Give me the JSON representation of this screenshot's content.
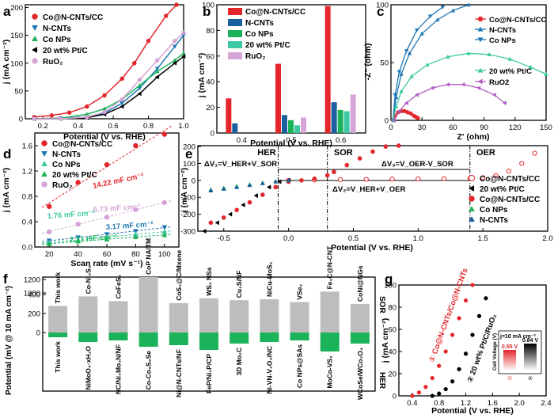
{
  "colors": {
    "red": "#e3262b",
    "blue": "#1f77b4",
    "navy": "#1a5f9e",
    "green": "#1bb35a",
    "teal": "#3cc8a2",
    "purple": "#b15dc4",
    "pink": "#d6a5d6",
    "gray": "#bdbdbd",
    "black": "#000000"
  },
  "panels": {
    "a": "a",
    "b": "b",
    "c": "c",
    "d": "d",
    "e": "e",
    "f": "f",
    "g": "g"
  },
  "chart_data": [
    {
      "panel": "a",
      "type": "line",
      "xlabel": "Potential (V vs. RHE)",
      "ylabel": "j (mA cm⁻²)",
      "xlim": [
        0.1,
        1.0
      ],
      "ylim": [
        0,
        205
      ],
      "xticks": [
        0.2,
        0.4,
        0.6,
        0.8,
        1.0
      ],
      "yticks": [
        0,
        50,
        100,
        150,
        200
      ],
      "legend": [
        "Co@N-CNTs/CC",
        "N-CNTs",
        "Co NPs",
        "20 wt% Pt/C",
        "RuO₂"
      ],
      "series": [
        {
          "name": "Co@N-CNTs/CC",
          "x": [
            0.15,
            0.25,
            0.35,
            0.45,
            0.55,
            0.65,
            0.72,
            0.8,
            0.9,
            0.96
          ],
          "y": [
            3,
            6,
            11,
            22,
            42,
            72,
            100,
            140,
            185,
            205
          ]
        },
        {
          "name": "N-CNTs",
          "x": [
            0.15,
            0.3,
            0.45,
            0.55,
            0.65,
            0.75,
            0.85,
            0.95,
            1.0
          ],
          "y": [
            0,
            1,
            3,
            10,
            28,
            55,
            90,
            130,
            150
          ]
        },
        {
          "name": "Co NPs",
          "x": [
            0.15,
            0.3,
            0.45,
            0.55,
            0.65,
            0.75,
            0.85,
            0.95,
            1.0
          ],
          "y": [
            0,
            1,
            8,
            18,
            35,
            60,
            85,
            105,
            118
          ]
        },
        {
          "name": "20 wt% Pt/C",
          "x": [
            0.15,
            0.3,
            0.45,
            0.55,
            0.65,
            0.75,
            0.85,
            0.95,
            1.0
          ],
          "y": [
            0,
            0,
            2,
            8,
            22,
            45,
            75,
            100,
            112
          ]
        },
        {
          "name": "RuO₂",
          "x": [
            0.15,
            0.3,
            0.45,
            0.55,
            0.65,
            0.75,
            0.85,
            0.95,
            1.0
          ],
          "y": [
            0,
            0,
            3,
            12,
            35,
            70,
            105,
            140,
            155
          ]
        }
      ]
    },
    {
      "panel": "b",
      "type": "bar",
      "xlabel": "Potential (V vs. RHE)",
      "ylabel": "j (mA cm⁻²)",
      "ylim": [
        0,
        100
      ],
      "yticks": [
        0,
        20,
        40,
        60,
        80,
        100
      ],
      "categories": [
        "0.4",
        "0.5",
        "0.6"
      ],
      "series": [
        {
          "name": "Co@N-CNTs/CC",
          "values": [
            27,
            54,
            99
          ]
        },
        {
          "name": "N-CNTs",
          "values": [
            7.5,
            14,
            24
          ]
        },
        {
          "name": "Co NPs",
          "values": [
            0,
            10,
            18
          ]
        },
        {
          "name": "20 wt% Pt/C",
          "values": [
            0,
            6,
            17
          ]
        },
        {
          "name": "RuO₂",
          "values": [
            0,
            12,
            30
          ]
        }
      ]
    },
    {
      "panel": "c",
      "type": "scatter",
      "xlabel": "Z' (ohm)",
      "ylabel": "-Z'' (ohm)",
      "xlim": [
        0,
        150
      ],
      "ylim": [
        0,
        100
      ],
      "xticks": [
        0,
        30,
        60,
        90,
        120,
        150
      ],
      "yticks": [
        0,
        50,
        100
      ],
      "series": [
        {
          "name": "Co@N-CNTs/CC",
          "x": [
            2,
            4,
            7,
            10,
            13,
            16,
            19,
            22,
            24,
            26
          ],
          "y": [
            0,
            4,
            7,
            8,
            8,
            7,
            6,
            4,
            3,
            2
          ]
        },
        {
          "name": "N-CNTs",
          "x": [
            2,
            5,
            10,
            18,
            30,
            45,
            60,
            75,
            88
          ],
          "y": [
            0,
            20,
            40,
            58,
            75,
            87,
            95,
            100,
            104
          ]
        },
        {
          "name": "Co NPs",
          "x": [
            2,
            4,
            8,
            15,
            25,
            38,
            50,
            62,
            70
          ],
          "y": [
            0,
            22,
            42,
            60,
            78,
            90,
            98,
            104,
            108
          ]
        },
        {
          "name": "20 wt% Pt/C",
          "x": [
            2,
            5,
            10,
            20,
            35,
            55,
            75,
            95,
            115,
            135,
            150
          ],
          "y": [
            0,
            12,
            25,
            38,
            48,
            55,
            58,
            57,
            53,
            46,
            40
          ]
        },
        {
          "name": "RuO2",
          "x": [
            3,
            8,
            15,
            25,
            40,
            55,
            70,
            85,
            100,
            110
          ],
          "y": [
            0,
            8,
            15,
            22,
            28,
            31,
            31,
            28,
            22,
            15
          ]
        }
      ]
    },
    {
      "panel": "d",
      "type": "scatter",
      "xlabel": "Scan rate (mV s⁻¹)",
      "ylabel": "j (mA cm⁻²)",
      "xlim": [
        10,
        110
      ],
      "ylim": [
        0,
        1.8
      ],
      "xticks": [
        20,
        40,
        60,
        80,
        100
      ],
      "yticks": [
        0.0,
        0.4,
        0.8,
        1.2,
        1.6
      ],
      "annotations": [
        "14.22 mF cm⁻²",
        "5.73 mF cm⁻²",
        "1.76 mF cm⁻²",
        "3.17 mF cm⁻²",
        "2.21 mF cm⁻²"
      ],
      "x": [
        20,
        40,
        60,
        80,
        100
      ],
      "series": [
        {
          "name": "Co@N-CNTs/CC",
          "values": [
            0.64,
            1.02,
            1.3,
            1.6,
            1.78
          ]
        },
        {
          "name": "N-CNTs",
          "values": [
            0.1,
            0.15,
            0.2,
            0.25,
            0.31
          ]
        },
        {
          "name": "Co NPs",
          "values": [
            0.07,
            0.11,
            0.16,
            0.2,
            0.24
          ]
        },
        {
          "name": "20 wt% Pt/C",
          "values": [
            0.05,
            0.09,
            0.12,
            0.16,
            0.19
          ]
        },
        {
          "name": "RuO₂",
          "values": [
            0.24,
            0.36,
            0.47,
            0.59,
            0.7
          ]
        }
      ]
    },
    {
      "panel": "e",
      "type": "line",
      "xlabel": "Potential (V vs. RHE)",
      "ylabel": "j (mA cm⁻²)",
      "xlim": [
        -0.7,
        2.0
      ],
      "ylim": [
        -300,
        205
      ],
      "xticks": [
        -0.5,
        0.0,
        0.5,
        1.0,
        1.5,
        2.0
      ],
      "yticks": [
        -300,
        -200,
        -100,
        0,
        100,
        200
      ],
      "regions": [
        "HER",
        "SOR",
        "OER"
      ],
      "labels": {
        "v1": "ΔV₁=V_HER+V_SOR",
        "v2": "ΔV₂=V_HER+V_OER",
        "v3": "ΔV₃=V_OER-V_SOR"
      },
      "legend": [
        "Co@N-CNTs/CC",
        "20 wt% Pt/C",
        "Co@N-CNTs/CC",
        "Co NPs",
        "N-CNTs"
      ],
      "series": [
        {
          "name": "Co@N-CNTs/CC",
          "x": [
            0.0,
            0.2,
            0.4,
            0.6,
            0.8,
            1.0,
            1.2,
            1.4,
            1.5,
            1.6,
            1.7,
            1.8,
            1.9
          ],
          "y": [
            0,
            2,
            4,
            6,
            8,
            9,
            10,
            12,
            16,
            28,
            55,
            100,
            160
          ]
        },
        {
          "name": "20 wt% Pt/C",
          "x": [
            -0.65,
            -0.55,
            -0.45,
            -0.35,
            -0.25,
            -0.15,
            -0.07,
            0.0
          ],
          "y": [
            -300,
            -250,
            -200,
            -145,
            -90,
            -40,
            -8,
            0
          ]
        },
        {
          "name": "Co@N-CNTs/CC",
          "x": [
            -0.6,
            -0.5,
            -0.4,
            -0.3,
            -0.2,
            -0.1,
            0.0,
            0.1,
            0.2,
            0.3,
            0.35,
            0.45,
            0.55,
            0.65,
            0.75,
            0.85
          ],
          "y": [
            -250,
            -220,
            -175,
            -130,
            -85,
            -40,
            -8,
            0,
            10,
            30,
            50,
            90,
            130,
            170,
            200,
            205
          ]
        },
        {
          "name": "Co NPs",
          "x": [
            -0.6,
            -0.5,
            -0.4,
            -0.3,
            -0.2,
            -0.1,
            0.0
          ],
          "y": [
            -55,
            -45,
            -35,
            -25,
            -15,
            -6,
            0
          ]
        },
        {
          "name": "N-CNTs",
          "x": [
            -0.6,
            -0.5,
            -0.4,
            -0.3,
            -0.2,
            -0.1,
            0.0
          ],
          "y": [
            -60,
            -50,
            -40,
            -28,
            -17,
            -7,
            0
          ]
        }
      ]
    },
    {
      "panel": "f",
      "type": "bar",
      "ylabel": "Potential (mV @ 10 mA cm⁻²)",
      "yticks": [
        0,
        200,
        400,
        600,
        800,
        1000,
        1200
      ],
      "side_labels": [
        "SOR",
        "HER"
      ],
      "categories": [
        "This work",
        "NiMoO₄·xH₂O",
        "NC/Ni₃Mo₃N/NF",
        "Co-Co₉S₈Se",
        "Ni@N-CNTs/NF",
        "FeP/Ni₂P/CP",
        "3D Mo₂C",
        "Ni-VN-V₂O₃/NC",
        "Co NPs@SAs",
        "MoCo-VS₂",
        "WCoSe/WCo₃O₄"
      ],
      "top_labels": [
        "This work",
        "Co-Ni₃S₂",
        "CoFeS₂",
        "CoP NA/TM",
        "CoS₂@C/Mxene",
        "WS₂ NSs",
        "Cu₂S/NF",
        "NiCu-MoS₂",
        "VSe₂",
        "Fe₂C@N-CNT",
        "CoNi@NGs"
      ],
      "sor_values": [
        280,
        380,
        330,
        1350,
        310,
        360,
        340,
        350,
        320,
        430,
        300
      ],
      "her_values": [
        -30,
        -60,
        -50,
        -90,
        -80,
        -110,
        -70,
        -60,
        -50,
        -120,
        -70
      ]
    },
    {
      "panel": "g",
      "type": "line",
      "xlabel": "Potential (V vs. RHE)",
      "ylabel": "j (mA cm⁻²)",
      "xlim": [
        0.2,
        2.4
      ],
      "ylim": [
        0,
        100
      ],
      "xticks": [
        0.4,
        0.8,
        1.2,
        1.6,
        2.0,
        2.4
      ],
      "yticks": [
        0,
        20,
        40,
        60,
        80,
        100
      ],
      "series": [
        {
          "name": "① Co@N-CNTs/Co@N-CNTs",
          "x": [
            0.4,
            0.5,
            0.6,
            0.7,
            0.8,
            0.9,
            1.0,
            1.1,
            1.2,
            1.3
          ],
          "y": [
            0,
            3,
            8,
            16,
            27,
            40,
            55,
            70,
            86,
            100
          ]
        },
        {
          "name": "② 20 wt% Pt/C/RuO₂",
          "x": [
            0.7,
            0.8,
            0.9,
            1.0,
            1.1,
            1.2,
            1.3,
            1.4,
            1.5
          ],
          "y": [
            0,
            2,
            6,
            13,
            24,
            38,
            55,
            72,
            88
          ]
        }
      ],
      "inset": {
        "title": "j=10 mA cm⁻²",
        "ylabel": "Cell Voltage (V)",
        "bars": [
          {
            "label": "0.55 V",
            "x": "①"
          },
          {
            "label": "0.84 V",
            "x": "②"
          }
        ]
      }
    }
  ]
}
